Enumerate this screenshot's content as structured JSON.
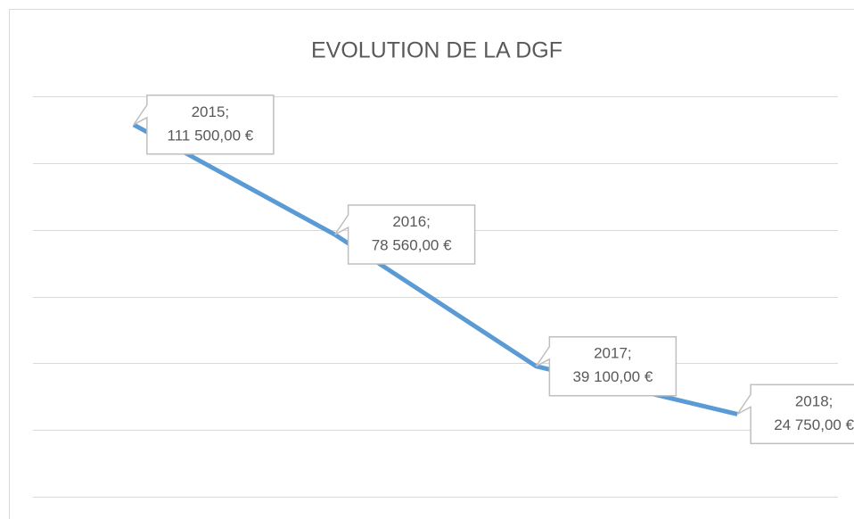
{
  "chart_data": {
    "type": "line",
    "title": "EVOLUTION DE LA DGF",
    "categories": [
      "2015",
      "2016",
      "2017",
      "2018"
    ],
    "data_label_separator": ";",
    "series": [
      {
        "color": "#5b9bd5",
        "values": [
          111500,
          78560,
          39100,
          24750
        ],
        "value_labels": [
          "111 500,00 €",
          "78 560,00 €",
          "39 100,00 €",
          "24 750,00 €"
        ]
      }
    ],
    "ylim": [
      0,
      120000
    ],
    "yticks": [
      0,
      20000,
      40000,
      60000,
      80000,
      100000,
      120000
    ],
    "grid": true
  }
}
